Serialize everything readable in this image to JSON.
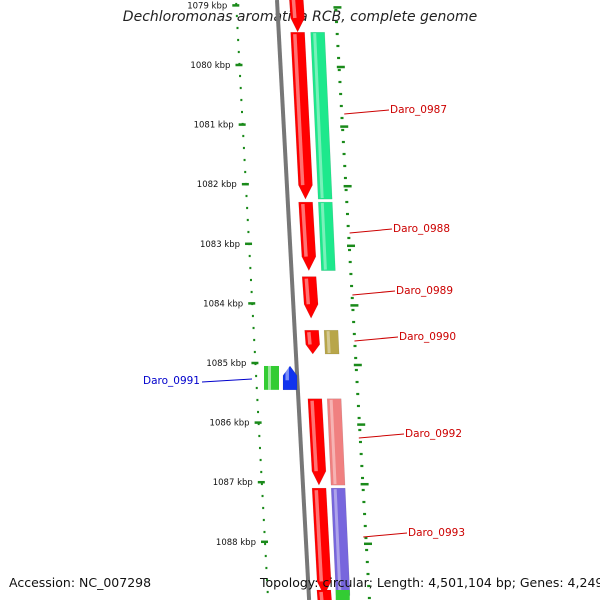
{
  "title": "Dechloromonas aromatica RCB, complete genome",
  "footer": {
    "accession": "Accession: NC_007298",
    "summary": "Topology: circular; Length: 4,501,104 bp; Genes: 4,249"
  },
  "ticks": [
    {
      "label": "1079 kbp",
      "kb": 1079
    },
    {
      "label": "1080 kbp",
      "kb": 1080
    },
    {
      "label": "1081 kbp",
      "kb": 1081
    },
    {
      "label": "1082 kbp",
      "kb": 1082
    },
    {
      "label": "1083 kbp",
      "kb": 1083
    },
    {
      "label": "1084 kbp",
      "kb": 1084
    },
    {
      "label": "1085 kbp",
      "kb": 1085
    },
    {
      "label": "1086 kbp",
      "kb": 1086
    },
    {
      "label": "1087 kbp",
      "kb": 1087
    },
    {
      "label": "1088 kbp",
      "kb": 1088
    }
  ],
  "genes": [
    {
      "name": "Daro_0987",
      "strand": "+",
      "start_kb": 1079.45,
      "end_kb": 1082.25,
      "color": "#1ee88c",
      "label_color": "#cc0000"
    },
    {
      "name": "Daro_0988",
      "strand": "+",
      "start_kb": 1082.3,
      "end_kb": 1083.45,
      "color": "#1ee88c",
      "label_color": "#cc0000"
    },
    {
      "name": "Daro_0989",
      "strand": "+",
      "start_kb": 1083.55,
      "end_kb": 1084.25,
      "color": "#ff0000",
      "label_color": "#cc0000"
    },
    {
      "name": "Daro_0990",
      "strand": "+",
      "start_kb": 1084.45,
      "end_kb": 1084.85,
      "color": "#b8a64a",
      "label_color": "#cc0000"
    },
    {
      "name": "Daro_0991",
      "strand": "-",
      "start_kb": 1085.05,
      "end_kb": 1085.45,
      "color": "#1133ee",
      "label_color": "#0000cc"
    },
    {
      "name": "Daro_0992",
      "strand": "+",
      "start_kb": 1085.6,
      "end_kb": 1087.05,
      "color": "#f08080",
      "label_color": "#cc0000"
    },
    {
      "name": "Daro_0993",
      "strand": "+",
      "start_kb": 1087.1,
      "end_kb": 1088.9,
      "color": "#7766dd",
      "label_color": "#cc0000"
    }
  ],
  "colors": {
    "backbone": "#777777",
    "tick": "#1a8a1a",
    "cds": "#ff0000"
  }
}
